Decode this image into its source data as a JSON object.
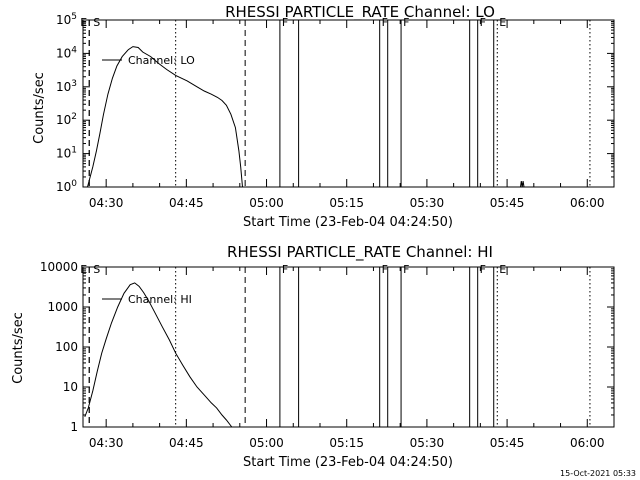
{
  "timestamp": "15-Oct-2021 05:33",
  "flag_style": {
    "S": "dashed",
    "E": "dotted",
    "F": "solid"
  },
  "chart_data": [
    {
      "type": "line",
      "title": "RHESSI PARTICLE_RATE Channel: LO",
      "xlabel": "Start Time (23-Feb-04 04:24:50)",
      "ylabel": "Counts/sec",
      "xlim": [
        "04:25:40",
        "06:05:00"
      ],
      "ylog": true,
      "ylim": [
        1,
        100000
      ],
      "ytick_labels": [
        "10^0",
        "10^1",
        "10^2",
        "10^3",
        "10^4",
        "10^5"
      ],
      "ytick_values": [
        1,
        10,
        100,
        1000,
        10000,
        100000
      ],
      "xtick_labels": [
        "04:30",
        "04:45",
        "05:00",
        "05:15",
        "05:30",
        "05:45",
        "06:00"
      ],
      "xtick_values": [
        "04:30",
        "04:45",
        "05:00",
        "05:15",
        "05:30",
        "05:45",
        "06:00"
      ],
      "legend": "Channel: LO",
      "series": [
        {
          "name": "Channel: LO",
          "color": "#000000",
          "points": [
            [
              "04:26:30",
              1
            ],
            [
              "04:27:30",
              4
            ],
            [
              "04:28:10",
              12
            ],
            [
              "04:28:50",
              40
            ],
            [
              "04:29:30",
              150
            ],
            [
              "04:30:20",
              600
            ],
            [
              "04:31:10",
              1800
            ],
            [
              "04:32:00",
              4200
            ],
            [
              "04:33:00",
              8000
            ],
            [
              "04:34:10",
              13000
            ],
            [
              "04:35:00",
              16000
            ],
            [
              "04:36:00",
              15000
            ],
            [
              "04:36:50",
              11000
            ],
            [
              "04:38:20",
              8000
            ],
            [
              "04:39:50",
              5000
            ],
            [
              "04:41:20",
              3300
            ],
            [
              "04:43:00",
              2200
            ],
            [
              "04:45:10",
              1500
            ],
            [
              "04:47:00",
              1000
            ],
            [
              "04:48:20",
              750
            ],
            [
              "04:49:40",
              600
            ],
            [
              "04:50:50",
              480
            ],
            [
              "04:51:40",
              390
            ],
            [
              "04:52:30",
              280
            ],
            [
              "04:53:20",
              150
            ],
            [
              "04:54:10",
              60
            ],
            [
              "04:54:50",
              12
            ],
            [
              "04:55:10",
              4
            ],
            [
              "04:55:30",
              1
            ]
          ]
        }
      ],
      "minor_trace": [
        [
          "05:47:30",
          1
        ],
        [
          "05:47:40",
          1.5
        ],
        [
          "05:47:50",
          1
        ],
        [
          "05:48:00",
          1.5
        ],
        [
          "05:48:10",
          1
        ]
      ],
      "flag_lines": [
        {
          "time": "04:26:50",
          "flag": "S",
          "label": "E"
        },
        {
          "time": "04:26:50",
          "flag": "S",
          "label": "S"
        },
        {
          "time": "04:56:00",
          "flag": "S",
          "label": ""
        },
        {
          "time": "04:43:00",
          "flag": "E",
          "label": ""
        },
        {
          "time": "05:02:30",
          "flag": "F",
          "label": "F"
        },
        {
          "time": "05:06:00",
          "flag": "F",
          "label": ""
        },
        {
          "time": "05:21:10",
          "flag": "F",
          "label": "F"
        },
        {
          "time": "05:22:40",
          "flag": "F",
          "label": ""
        },
        {
          "time": "05:25:10",
          "flag": "F",
          "label": "F"
        },
        {
          "time": "05:38:00",
          "flag": "F",
          "label": ""
        },
        {
          "time": "05:39:30",
          "flag": "F",
          "label": "F"
        },
        {
          "time": "05:42:30",
          "flag": "F",
          "label": ""
        },
        {
          "time": "05:43:10",
          "flag": "E",
          "label": "E"
        },
        {
          "time": "06:00:30",
          "flag": "E",
          "label": ""
        }
      ]
    },
    {
      "type": "line",
      "title": "RHESSI PARTICLE_RATE Channel: HI",
      "xlabel": "Start Time (23-Feb-04 04:24:50)",
      "ylabel": "Counts/sec",
      "xlim": [
        "04:25:40",
        "06:05:00"
      ],
      "ylog": true,
      "ylim": [
        1,
        10000
      ],
      "ytick_labels": [
        "1",
        "10",
        "100",
        "1000",
        "10000"
      ],
      "ytick_values": [
        1,
        10,
        100,
        1000,
        10000
      ],
      "xtick_labels": [
        "04:30",
        "04:45",
        "05:00",
        "05:15",
        "05:30",
        "05:45",
        "06:00"
      ],
      "xtick_values": [
        "04:30",
        "04:45",
        "05:00",
        "05:15",
        "05:30",
        "05:45",
        "06:00"
      ],
      "legend": "Channel: HI",
      "series": [
        {
          "name": "Channel: HI",
          "color": "#000000",
          "points": [
            [
              "04:26:00",
              1.8
            ],
            [
              "04:26:40",
              3
            ],
            [
              "04:27:30",
              8
            ],
            [
              "04:28:20",
              25
            ],
            [
              "04:29:10",
              70
            ],
            [
              "04:30:00",
              160
            ],
            [
              "04:31:00",
              400
            ],
            [
              "04:32:10",
              1000
            ],
            [
              "04:33:20",
              2200
            ],
            [
              "04:34:30",
              3600
            ],
            [
              "04:35:20",
              4000
            ],
            [
              "04:36:10",
              3300
            ],
            [
              "04:37:00",
              2300
            ],
            [
              "04:38:00",
              1400
            ],
            [
              "04:39:10",
              700
            ],
            [
              "04:40:30",
              320
            ],
            [
              "04:41:50",
              150
            ],
            [
              "04:43:00",
              70
            ],
            [
              "04:44:20",
              35
            ],
            [
              "04:45:40",
              18
            ],
            [
              "04:47:00",
              10
            ],
            [
              "04:48:30",
              6
            ],
            [
              "04:49:40",
              4
            ],
            [
              "04:50:40",
              3
            ],
            [
              "04:51:40",
              2
            ],
            [
              "04:52:30",
              1.5
            ],
            [
              "04:53:30",
              1
            ]
          ]
        }
      ],
      "flag_lines": [
        {
          "time": "04:26:50",
          "flag": "S",
          "label": "E"
        },
        {
          "time": "04:26:50",
          "flag": "S",
          "label": "S"
        },
        {
          "time": "04:56:00",
          "flag": "S",
          "label": ""
        },
        {
          "time": "04:43:00",
          "flag": "E",
          "label": ""
        },
        {
          "time": "05:02:30",
          "flag": "F",
          "label": "F"
        },
        {
          "time": "05:06:00",
          "flag": "F",
          "label": ""
        },
        {
          "time": "05:21:10",
          "flag": "F",
          "label": "F"
        },
        {
          "time": "05:22:40",
          "flag": "F",
          "label": ""
        },
        {
          "time": "05:25:10",
          "flag": "F",
          "label": "F"
        },
        {
          "time": "05:38:00",
          "flag": "F",
          "label": ""
        },
        {
          "time": "05:39:30",
          "flag": "F",
          "label": "F"
        },
        {
          "time": "05:42:30",
          "flag": "F",
          "label": ""
        },
        {
          "time": "05:43:10",
          "flag": "E",
          "label": "E"
        },
        {
          "time": "06:00:30",
          "flag": "E",
          "label": ""
        }
      ]
    }
  ]
}
